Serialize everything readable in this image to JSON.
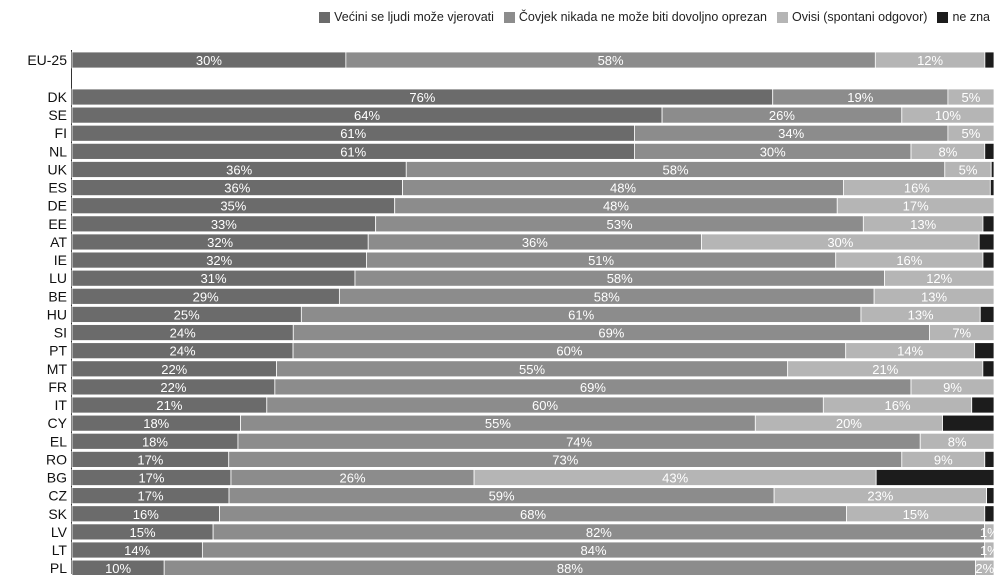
{
  "chart_data": {
    "type": "bar",
    "orientation": "horizontal",
    "stacked": true,
    "legend_position": "top-right",
    "colors": [
      "#6b6b6b",
      "#8c8c8c",
      "#b5b5b5",
      "#1c1c1c"
    ],
    "categories": [
      "EU-25",
      "DK",
      "SE",
      "FI",
      "NL",
      "UK",
      "ES",
      "DE",
      "EE",
      "AT",
      "IE",
      "LU",
      "BE",
      "HU",
      "SI",
      "PT",
      "MT",
      "FR",
      "IT",
      "CY",
      "EL",
      "RO",
      "BG",
      "CZ",
      "SK",
      "LV",
      "LT",
      "PL"
    ],
    "series": [
      {
        "name": "Većini se ljudi može vjerovati",
        "values": [
          30,
          76,
          64,
          61,
          61,
          36,
          36,
          35,
          33,
          32,
          32,
          31,
          29,
          25,
          24,
          24,
          22,
          22,
          21,
          18,
          18,
          17,
          17,
          17,
          16,
          15,
          14,
          10
        ]
      },
      {
        "name": "Čovjek nikada ne može biti dovoljno oprezan",
        "values": [
          58,
          19,
          26,
          34,
          30,
          58,
          48,
          48,
          53,
          36,
          51,
          58,
          58,
          61,
          69,
          60,
          55,
          69,
          60,
          55,
          74,
          73,
          26,
          59,
          68,
          82,
          84,
          88
        ]
      },
      {
        "name": "Ovisi (spontani odgovor)",
        "values": [
          12,
          5,
          10,
          5,
          8,
          5,
          16,
          17,
          13,
          30,
          16,
          12,
          13,
          13,
          7,
          14,
          21,
          9,
          16,
          20,
          8,
          9,
          43,
          23,
          15,
          1,
          1,
          2
        ]
      },
      {
        "name": "ne zna",
        "values": [
          1,
          0,
          0,
          0,
          1,
          0.3,
          0.4,
          0,
          1.2,
          1.6,
          1.2,
          0,
          0,
          1.5,
          0,
          2.1,
          1.2,
          0,
          2.4,
          5.5,
          0,
          1,
          12.6,
          0.8,
          1,
          0,
          0,
          0
        ]
      }
    ],
    "labels": [
      [
        "30%",
        "58%",
        "12%",
        ""
      ],
      [
        "76%",
        "19%",
        "5%",
        ""
      ],
      [
        "64%",
        "26%",
        "10%",
        ""
      ],
      [
        "61%",
        "34%",
        "5%",
        ""
      ],
      [
        "61%",
        "30%",
        "8%",
        ""
      ],
      [
        "36%",
        "58%",
        "5%",
        ""
      ],
      [
        "36%",
        "48%",
        "16%",
        ""
      ],
      [
        "35%",
        "48%",
        "17%",
        ""
      ],
      [
        "33%",
        "53%",
        "13%",
        ""
      ],
      [
        "32%",
        "36%",
        "30%",
        ""
      ],
      [
        "32%",
        "51%",
        "16%",
        ""
      ],
      [
        "31%",
        "58%",
        "12%",
        ""
      ],
      [
        "29%",
        "58%",
        "13%",
        ""
      ],
      [
        "25%",
        "61%",
        "13%",
        ""
      ],
      [
        "24%",
        "69%",
        "7%",
        ""
      ],
      [
        "24%",
        "60%",
        "14%",
        ""
      ],
      [
        "22%",
        "55%",
        "21%",
        ""
      ],
      [
        "22%",
        "69%",
        "9%",
        ""
      ],
      [
        "21%",
        "60%",
        "16%",
        ""
      ],
      [
        "18%",
        "55%",
        "20%",
        ""
      ],
      [
        "18%",
        "74%",
        "8%",
        ""
      ],
      [
        "17%",
        "73%",
        "9%",
        ""
      ],
      [
        "17%",
        "26%",
        "43%",
        ""
      ],
      [
        "17%",
        "59%",
        "23%",
        ""
      ],
      [
        "16%",
        "68%",
        "15%",
        ""
      ],
      [
        "15%",
        "82%",
        "1%",
        ""
      ],
      [
        "14%",
        "84%",
        "1%",
        ""
      ],
      [
        "10%",
        "88%",
        "2%",
        ""
      ]
    ]
  }
}
